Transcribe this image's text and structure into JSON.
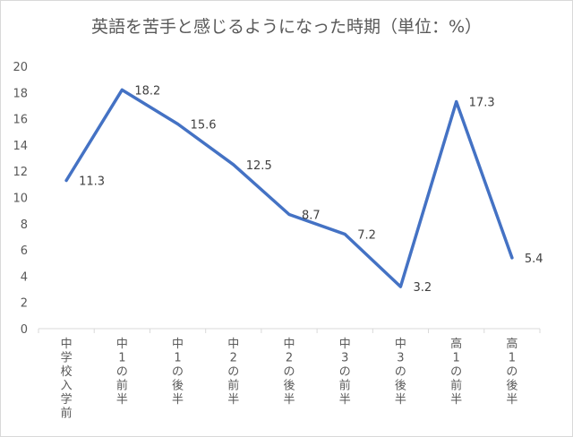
{
  "chart_data": {
    "type": "line",
    "title": "英語を苦手と感じるようになった時期（単位：%）",
    "categories": [
      "中学校入学前",
      "中1の前半",
      "中1の後半",
      "中2の前半",
      "中2の後半",
      "中3の前半",
      "中3の後半",
      "高1の前半",
      "高1の後半"
    ],
    "series": [
      {
        "values": [
          11.3,
          18.2,
          15.6,
          12.5,
          8.7,
          7.2,
          3.2,
          17.3,
          5.4
        ]
      }
    ],
    "data_labels": [
      "11.3",
      "18.2",
      "15.6",
      "12.5",
      "8.7",
      "7.2",
      "3.2",
      "17.3",
      "5.4"
    ],
    "yticks": [
      "0",
      "2",
      "4",
      "6",
      "8",
      "10",
      "12",
      "14",
      "16",
      "18",
      "20"
    ],
    "ylim": [
      0,
      20
    ],
    "xlabel": "",
    "ylabel": "",
    "grid": false,
    "legend": "none",
    "line_color": "#4472c4"
  }
}
